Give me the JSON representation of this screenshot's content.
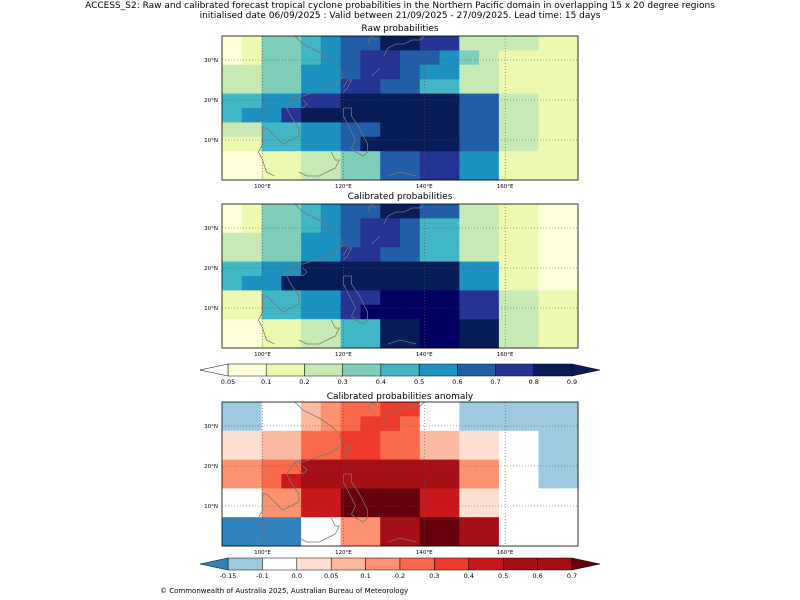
{
  "header": {
    "title_line1": "ACCESS_S2: Raw and calibrated forecast tropical cyclone probabilities in the Northern Pacific domain in overlapping 15 x 20 degree regions",
    "title_line2": "initialised date 06/09/2025 :  Valid between 21/09/2025 - 27/09/2025. Lead time: 15 days"
  },
  "axes": {
    "lon_labels": [
      "100°E",
      "120°E",
      "140°E",
      "160°E"
    ],
    "lat_labels": [
      "30°N",
      "20°N",
      "10°N"
    ]
  },
  "panels": [
    {
      "id": "raw",
      "title": "Raw probabilities",
      "palette": "prob",
      "grid": [
        [
          0,
          1,
          3,
          3,
          4,
          5,
          6,
          6,
          9,
          8,
          7,
          7,
          2,
          2,
          2,
          2,
          1,
          1
        ],
        [
          0,
          1,
          3,
          3,
          4,
          5,
          6,
          7,
          7,
          6,
          6,
          5,
          3,
          2,
          1,
          1,
          1,
          1
        ],
        [
          2,
          2,
          3,
          3,
          5,
          5,
          6,
          7,
          7,
          6,
          5,
          5,
          2,
          2,
          1,
          1,
          1,
          1
        ],
        [
          2,
          2,
          3,
          3,
          5,
          5,
          7,
          7,
          6,
          6,
          4,
          4,
          2,
          2,
          1,
          1,
          1,
          1
        ],
        [
          4,
          4,
          5,
          5,
          7,
          7,
          9,
          9,
          9,
          9,
          8,
          8,
          6,
          6,
          2,
          2,
          1,
          1
        ],
        [
          4,
          5,
          5,
          7,
          9,
          9,
          9,
          9,
          9,
          9,
          8,
          8,
          6,
          6,
          2,
          2,
          1,
          1
        ],
        [
          2,
          2,
          4,
          4,
          5,
          5,
          6,
          6,
          8,
          8,
          8,
          8,
          6,
          6,
          2,
          2,
          1,
          1
        ],
        [
          1,
          1,
          4,
          4,
          5,
          5,
          6,
          8,
          8,
          8,
          8,
          8,
          6,
          6,
          2,
          2,
          1,
          1
        ],
        [
          0,
          0,
          1,
          1,
          2,
          2,
          3,
          3,
          6,
          6,
          7,
          7,
          5,
          5,
          1,
          1,
          1,
          1
        ],
        [
          0,
          0,
          1,
          1,
          2,
          2,
          3,
          3,
          6,
          6,
          7,
          7,
          5,
          5,
          1,
          1,
          1,
          1
        ]
      ]
    },
    {
      "id": "calibrated",
      "title": "Calibrated probabilities",
      "palette": "prob",
      "grid": [
        [
          0,
          1,
          3,
          3,
          4,
          5,
          6,
          6,
          9,
          8,
          6,
          6,
          2,
          2,
          1,
          1,
          0,
          0
        ],
        [
          0,
          1,
          3,
          3,
          4,
          5,
          6,
          7,
          7,
          6,
          4,
          4,
          2,
          2,
          1,
          1,
          0,
          0
        ],
        [
          2,
          2,
          3,
          3,
          5,
          5,
          6,
          7,
          7,
          6,
          4,
          4,
          2,
          2,
          1,
          1,
          0,
          0
        ],
        [
          2,
          2,
          3,
          3,
          5,
          5,
          7,
          7,
          6,
          6,
          4,
          4,
          2,
          2,
          1,
          1,
          0,
          0
        ],
        [
          4,
          4,
          5,
          5,
          8,
          8,
          9,
          9,
          9,
          9,
          8,
          8,
          5,
          5,
          1,
          1,
          0,
          0
        ],
        [
          4,
          5,
          5,
          8,
          9,
          9,
          9,
          9,
          9,
          9,
          8,
          8,
          5,
          5,
          1,
          1,
          0,
          0
        ],
        [
          1,
          1,
          4,
          4,
          5,
          5,
          7,
          7,
          10,
          10,
          10,
          10,
          7,
          7,
          2,
          2,
          1,
          1
        ],
        [
          1,
          1,
          4,
          4,
          5,
          5,
          7,
          10,
          10,
          10,
          10,
          10,
          7,
          7,
          2,
          2,
          1,
          1
        ],
        [
          0,
          0,
          1,
          1,
          2,
          2,
          4,
          4,
          9,
          9,
          10,
          10,
          8,
          8,
          2,
          2,
          1,
          1
        ],
        [
          0,
          0,
          1,
          1,
          2,
          2,
          4,
          4,
          9,
          9,
          10,
          10,
          8,
          8,
          2,
          2,
          1,
          1
        ]
      ]
    },
    {
      "id": "anomaly",
      "title": "Calibrated probabilities anomaly",
      "palette": "anom",
      "grid": [
        [
          1,
          1,
          2,
          2,
          4,
          5,
          6,
          6,
          7,
          7,
          2,
          2,
          1,
          1,
          1,
          1,
          1,
          1
        ],
        [
          1,
          1,
          2,
          2,
          4,
          5,
          6,
          7,
          7,
          6,
          2,
          2,
          1,
          1,
          1,
          1,
          1,
          1
        ],
        [
          3,
          3,
          4,
          4,
          6,
          6,
          7,
          7,
          6,
          6,
          4,
          4,
          3,
          3,
          2,
          2,
          1,
          1
        ],
        [
          3,
          3,
          4,
          4,
          6,
          6,
          7,
          7,
          6,
          6,
          4,
          4,
          3,
          3,
          2,
          2,
          1,
          1
        ],
        [
          5,
          5,
          6,
          6,
          9,
          9,
          10,
          10,
          10,
          10,
          9,
          9,
          5,
          5,
          2,
          2,
          1,
          1
        ],
        [
          5,
          5,
          6,
          8,
          9,
          9,
          10,
          10,
          10,
          10,
          9,
          9,
          5,
          5,
          2,
          2,
          1,
          1
        ],
        [
          2,
          2,
          5,
          5,
          8,
          8,
          11,
          11,
          11,
          11,
          8,
          8,
          3,
          3,
          2,
          2,
          2,
          2
        ],
        [
          2,
          2,
          5,
          5,
          8,
          8,
          11,
          11,
          11,
          11,
          8,
          8,
          3,
          3,
          2,
          2,
          2,
          2
        ],
        [
          0,
          0,
          0,
          0,
          2,
          2,
          5,
          5,
          10,
          10,
          11,
          11,
          9,
          9,
          2,
          2,
          2,
          2
        ],
        [
          0,
          0,
          0,
          0,
          2,
          2,
          5,
          5,
          10,
          10,
          11,
          11,
          9,
          9,
          2,
          2,
          2,
          2
        ]
      ]
    }
  ],
  "colorbars": [
    {
      "id": "prob",
      "under_color": "#ffffff",
      "over_color": "#081d58",
      "colors": [
        "#ffffd9",
        "#edf8b1",
        "#c7e9b4",
        "#7fcdbb",
        "#41b6c4",
        "#1d91c0",
        "#225ea8",
        "#253494",
        "#081d58",
        "#081d58",
        "#000060"
      ],
      "labels": [
        "0.05",
        "0.1",
        "0.2",
        "0.3",
        "0.4",
        "0.5",
        "0.6",
        "0.7",
        "0.8",
        "0.9"
      ]
    },
    {
      "id": "anom",
      "under_color": "#3182bd",
      "over_color": "#67000d",
      "colors": [
        "#3182bd",
        "#9ecae1",
        "#ffffff",
        "#fee0d2",
        "#fcbba1",
        "#fc9272",
        "#fb6a4a",
        "#ef3b2c",
        "#cb181d",
        "#a50f15",
        "#a50f15",
        "#67000d"
      ],
      "labels": [
        "-0.15",
        "-0.1",
        "0.0",
        "0.05",
        "0.1",
        "0.2",
        "0.3",
        "0.4",
        "0.5",
        "0.6",
        "0.7"
      ]
    }
  ],
  "footer": {
    "copyright": "© Commonwealth of Australia 2025, Australian Bureau of Meteorology"
  }
}
